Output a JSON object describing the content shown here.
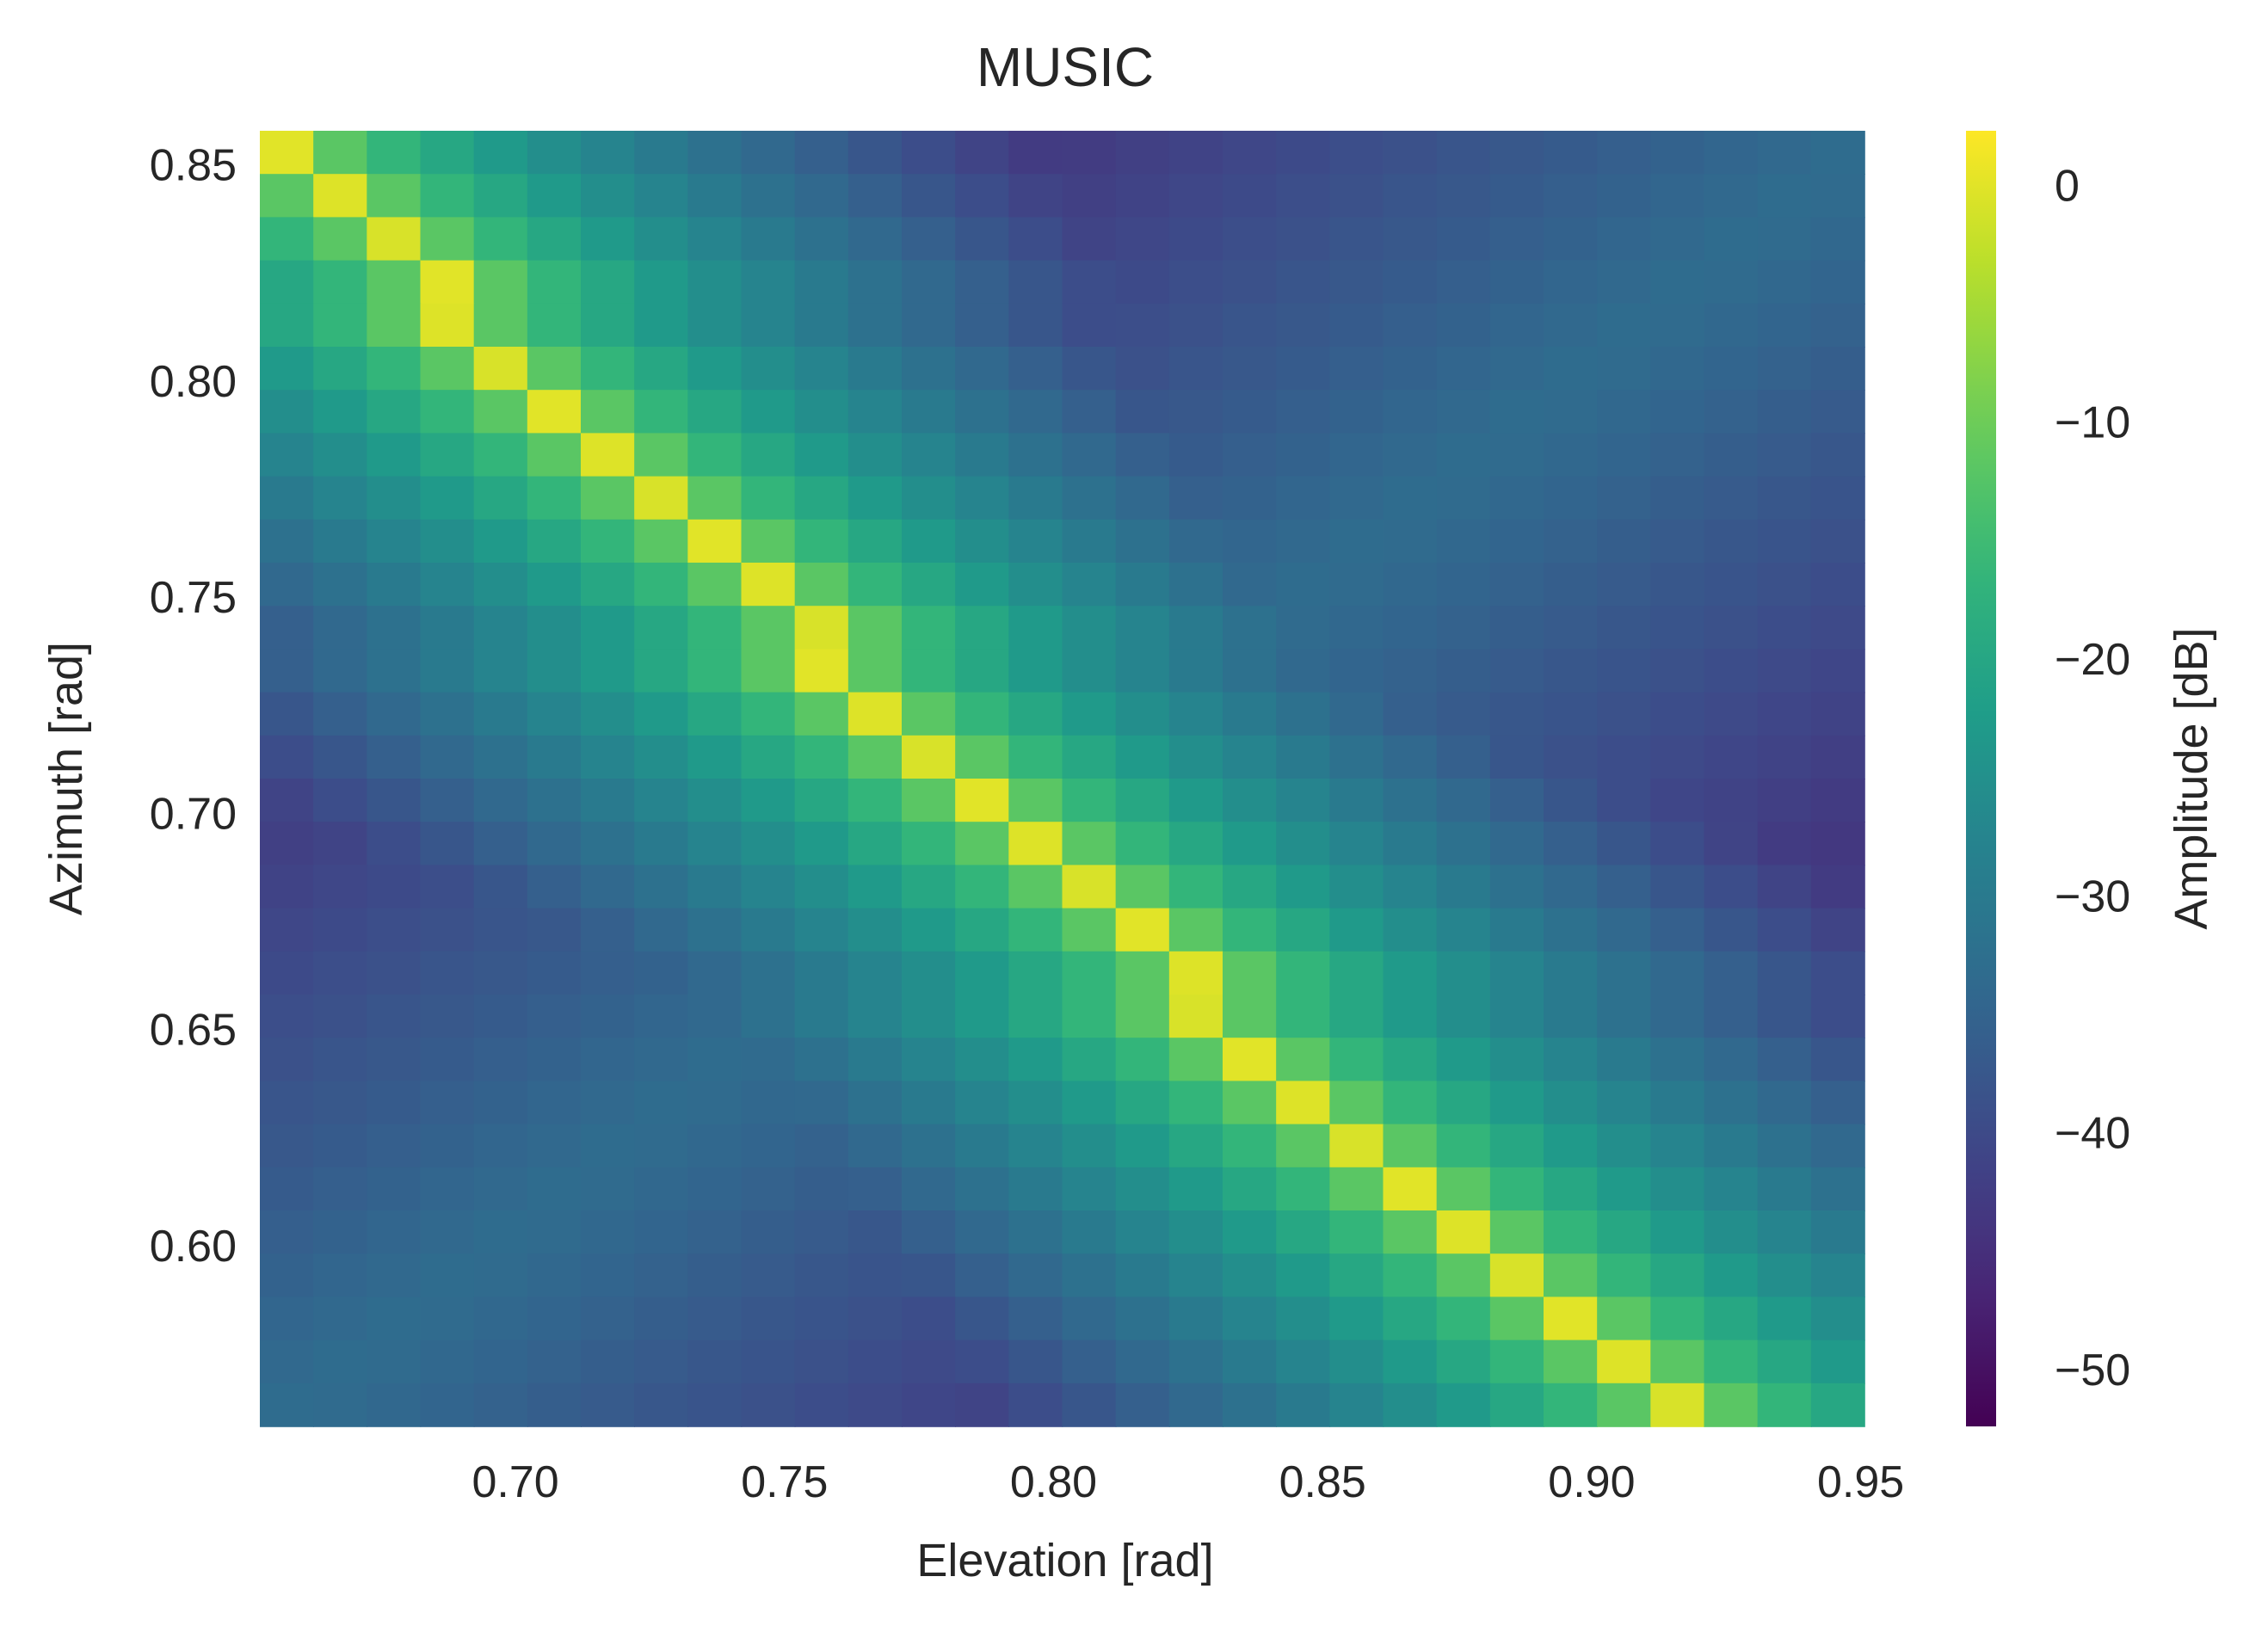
{
  "chart_data": {
    "type": "heatmap",
    "title": "MUSIC",
    "xlabel": "Elevation [rad]",
    "ylabel": "Azimuth [rad]",
    "colorbar_label": "Amplitude [dB]",
    "colormap": "viridis",
    "grid": false,
    "xlim": [
      0.6525,
      0.9507
    ],
    "ylim": [
      0.5582,
      0.8579
    ],
    "x_ticks": [
      "0.70",
      "0.75",
      "0.80",
      "0.85",
      "0.90",
      "0.95"
    ],
    "y_ticks": [
      "0.60",
      "0.65",
      "0.70",
      "0.75",
      "0.80",
      "0.85"
    ],
    "colorbar_ticks": [
      "0",
      "−10",
      "−20",
      "−30",
      "−40",
      "−50"
    ],
    "x_tick_values": [
      0.7,
      0.75,
      0.8,
      0.85,
      0.9,
      0.95
    ],
    "y_tick_values": [
      0.6,
      0.65,
      0.7,
      0.75,
      0.8,
      0.85
    ],
    "colorbar_tick_values": [
      0,
      -10,
      -20,
      -30,
      -40,
      -50
    ],
    "zlim": [
      -52.4,
      2.3
    ],
    "grid_cols": 30,
    "grid_rows": 30,
    "ridge": {
      "description_of_values": "peak amplitude cell index per row (row 0 = top, azimuth 0.8579; row 29 = bottom)",
      "peak_col_by_row": [
        0,
        1,
        2,
        3,
        3,
        4,
        5,
        6,
        7,
        8,
        9,
        10,
        10,
        11,
        12,
        13,
        14,
        15,
        16,
        17,
        17,
        18,
        19,
        20,
        21,
        22,
        23,
        24,
        25,
        26
      ],
      "peak_value_db": 0
    }
  }
}
